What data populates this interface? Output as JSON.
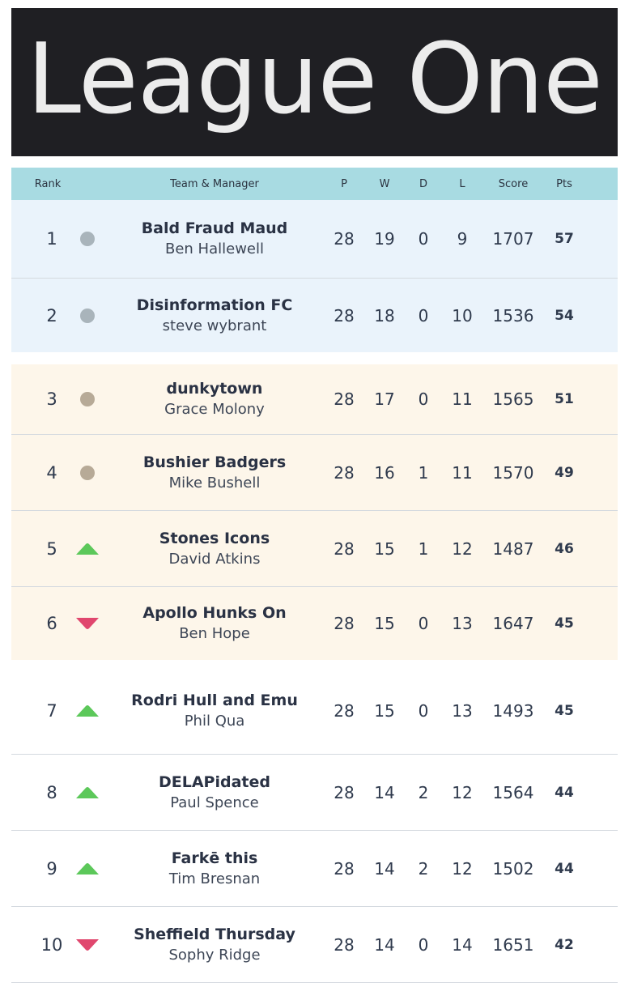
{
  "banner": {
    "title": "League One"
  },
  "header": {
    "rank": "Rank",
    "team": "Team & Manager",
    "p": "P",
    "w": "W",
    "d": "D",
    "l": "L",
    "score": "Score",
    "pts": "Pts"
  },
  "colors": {
    "banner_bg": "#1f1f23",
    "header_bg": "#a8dbe2",
    "promo_zone_bg": "#eaf3fb",
    "playoff_zone_bg": "#fdf6ea",
    "dot_blue": "#a9b4bb",
    "dot_tan": "#b7aa97",
    "up_green": "#5cc85a",
    "down_red": "#e0476e"
  },
  "rows": [
    {
      "rank": "1",
      "movement": "same",
      "team": "Bald Fraud Maud",
      "manager": "Ben Hallewell",
      "p": "28",
      "w": "19",
      "d": "0",
      "l": "9",
      "score": "1707",
      "pts": "57"
    },
    {
      "rank": "2",
      "movement": "same",
      "team": "Disinformation FC",
      "manager": "steve wybrant",
      "p": "28",
      "w": "18",
      "d": "0",
      "l": "10",
      "score": "1536",
      "pts": "54"
    },
    {
      "rank": "3",
      "movement": "same",
      "team": "dunkytown",
      "manager": "Grace Molony",
      "p": "28",
      "w": "17",
      "d": "0",
      "l": "11",
      "score": "1565",
      "pts": "51"
    },
    {
      "rank": "4",
      "movement": "same",
      "team": "Bushier Badgers",
      "manager": "Mike Bushell",
      "p": "28",
      "w": "16",
      "d": "1",
      "l": "11",
      "score": "1570",
      "pts": "49"
    },
    {
      "rank": "5",
      "movement": "up",
      "team": "Stones Icons",
      "manager": "David Atkins",
      "p": "28",
      "w": "15",
      "d": "1",
      "l": "12",
      "score": "1487",
      "pts": "46"
    },
    {
      "rank": "6",
      "movement": "down",
      "team": "Apollo Hunks On",
      "manager": "Ben Hope",
      "p": "28",
      "w": "15",
      "d": "0",
      "l": "13",
      "score": "1647",
      "pts": "45"
    },
    {
      "rank": "7",
      "movement": "up",
      "team": "Rodri Hull and Emu",
      "manager": "Phil Qua",
      "p": "28",
      "w": "15",
      "d": "0",
      "l": "13",
      "score": "1493",
      "pts": "45"
    },
    {
      "rank": "8",
      "movement": "up",
      "team": "DELAPidated",
      "manager": "Paul Spence",
      "p": "28",
      "w": "14",
      "d": "2",
      "l": "12",
      "score": "1564",
      "pts": "44"
    },
    {
      "rank": "9",
      "movement": "up",
      "team": "Farkē this",
      "manager": "Tim Bresnan",
      "p": "28",
      "w": "14",
      "d": "2",
      "l": "12",
      "score": "1502",
      "pts": "44"
    },
    {
      "rank": "10",
      "movement": "down",
      "team": "Sheffield Thursday",
      "manager": "Sophy Ridge",
      "p": "28",
      "w": "14",
      "d": "0",
      "l": "14",
      "score": "1651",
      "pts": "42"
    }
  ]
}
